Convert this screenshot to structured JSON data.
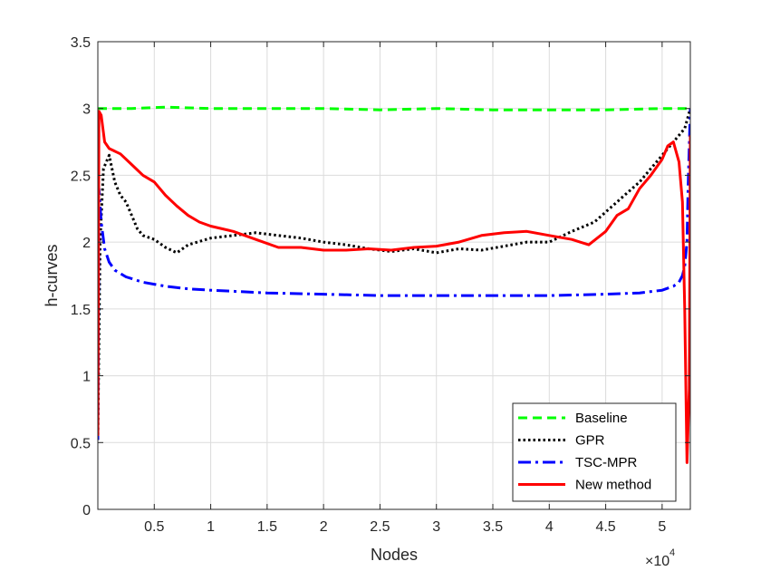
{
  "chart_data": {
    "type": "line",
    "title": "",
    "xlabel": "Nodes",
    "ylabel": "h-curves",
    "xlim": [
      0,
      5.25
    ],
    "ylim": [
      0,
      3.5
    ],
    "x_scale_exponent": "×10",
    "x_scale_power": "4",
    "x_ticks": [
      0.5,
      1,
      1.5,
      2,
      2.5,
      3,
      3.5,
      4,
      4.5,
      5
    ],
    "x_tick_labels": [
      "0.5",
      "1",
      "1.5",
      "2",
      "2.5",
      "3",
      "3.5",
      "4",
      "4.5",
      "5"
    ],
    "y_ticks": [
      0,
      0.5,
      1,
      1.5,
      2,
      2.5,
      3,
      3.5
    ],
    "y_tick_labels": [
      "0",
      "0.5",
      "1",
      "1.5",
      "2",
      "2.5",
      "3",
      "3.5"
    ],
    "grid": true,
    "legend_position": "bottom-right",
    "series": [
      {
        "name": "Baseline",
        "color": "#00ff00",
        "dash": "dashed",
        "x": [
          0.0,
          0.05,
          0.3,
          0.6,
          1.0,
          1.5,
          2.0,
          2.5,
          3.0,
          3.5,
          4.0,
          4.5,
          5.0,
          5.2,
          5.25
        ],
        "y": [
          3.0,
          3.0,
          3.0,
          3.01,
          3.0,
          3.0,
          3.0,
          2.99,
          3.0,
          2.99,
          2.99,
          2.99,
          3.0,
          3.0,
          3.0
        ]
      },
      {
        "name": "GPR",
        "color": "#000000",
        "dash": "dotted",
        "x": [
          0.0,
          0.02,
          0.05,
          0.1,
          0.15,
          0.2,
          0.25,
          0.3,
          0.35,
          0.4,
          0.5,
          0.6,
          0.7,
          0.8,
          1.0,
          1.2,
          1.4,
          1.6,
          1.8,
          2.0,
          2.2,
          2.4,
          2.6,
          2.8,
          3.0,
          3.2,
          3.4,
          3.6,
          3.8,
          4.0,
          4.2,
          4.4,
          4.6,
          4.8,
          5.0,
          5.1,
          5.2,
          5.25
        ],
        "y": [
          0.52,
          2.0,
          2.55,
          2.65,
          2.45,
          2.35,
          2.3,
          2.2,
          2.1,
          2.05,
          2.02,
          1.96,
          1.92,
          1.98,
          2.03,
          2.05,
          2.07,
          2.05,
          2.03,
          2.0,
          1.98,
          1.95,
          1.93,
          1.95,
          1.92,
          1.95,
          1.94,
          1.97,
          2.0,
          2.0,
          2.08,
          2.15,
          2.3,
          2.45,
          2.65,
          2.75,
          2.85,
          3.0
        ]
      },
      {
        "name": "TSC-MPR",
        "color": "#0000ff",
        "dash": "dashdot",
        "x": [
          0.0,
          0.01,
          0.03,
          0.06,
          0.1,
          0.15,
          0.25,
          0.4,
          0.6,
          0.8,
          1.0,
          1.5,
          2.0,
          2.5,
          3.0,
          3.5,
          4.0,
          4.5,
          4.8,
          5.0,
          5.1,
          5.15,
          5.18,
          5.2,
          5.22,
          5.23,
          5.25
        ],
        "y": [
          0.52,
          2.4,
          2.15,
          1.95,
          1.85,
          1.79,
          1.74,
          1.7,
          1.67,
          1.65,
          1.64,
          1.62,
          1.61,
          1.6,
          1.6,
          1.6,
          1.6,
          1.61,
          1.62,
          1.64,
          1.67,
          1.7,
          1.75,
          1.82,
          2.0,
          2.4,
          3.0
        ]
      },
      {
        "name": "New method",
        "color": "#ff0000",
        "dash": "solid",
        "x": [
          0.0,
          0.01,
          0.03,
          0.06,
          0.1,
          0.2,
          0.3,
          0.4,
          0.5,
          0.6,
          0.7,
          0.8,
          0.9,
          1.0,
          1.2,
          1.4,
          1.6,
          1.8,
          2.0,
          2.2,
          2.4,
          2.6,
          2.8,
          3.0,
          3.2,
          3.4,
          3.6,
          3.8,
          4.0,
          4.2,
          4.35,
          4.5,
          4.6,
          4.7,
          4.8,
          4.9,
          5.0,
          5.05,
          5.1,
          5.15,
          5.18,
          5.2,
          5.22,
          5.24,
          5.25
        ],
        "y": [
          0.55,
          2.98,
          2.95,
          2.75,
          2.7,
          2.66,
          2.58,
          2.5,
          2.45,
          2.35,
          2.27,
          2.2,
          2.15,
          2.12,
          2.08,
          2.02,
          1.96,
          1.96,
          1.94,
          1.94,
          1.95,
          1.94,
          1.96,
          1.97,
          2.0,
          2.05,
          2.07,
          2.08,
          2.05,
          2.02,
          1.98,
          2.08,
          2.2,
          2.25,
          2.4,
          2.5,
          2.62,
          2.72,
          2.75,
          2.6,
          2.3,
          1.5,
          0.35,
          0.9,
          2.8
        ]
      }
    ]
  }
}
